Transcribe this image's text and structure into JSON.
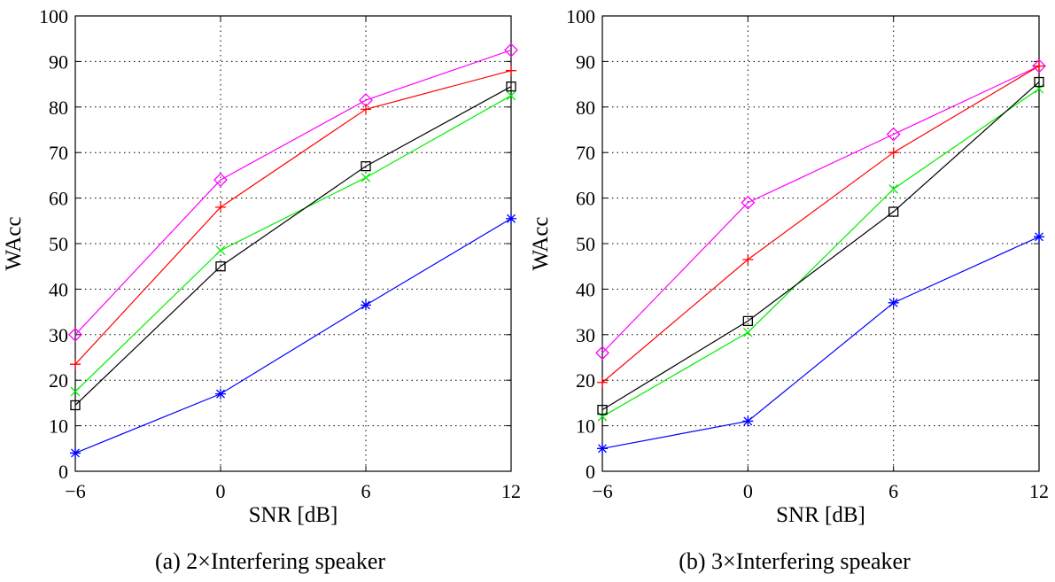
{
  "chart_data": [
    {
      "type": "line",
      "caption": "(a) 2×Interfering speaker",
      "xlabel": "SNR [dB]",
      "ylabel": "WAcc",
      "x": [
        -6,
        0,
        6,
        12
      ],
      "x_tick_labels": [
        "−6",
        "0",
        "6",
        "12"
      ],
      "xlim": [
        -6,
        12
      ],
      "ylim": [
        0,
        100
      ],
      "y_ticks": [
        0,
        10,
        20,
        30,
        40,
        50,
        60,
        70,
        80,
        90,
        100
      ],
      "grid": true,
      "series": [
        {
          "color": "#ff00ff",
          "marker": "diamond",
          "values": [
            30,
            64,
            81.5,
            92.5
          ]
        },
        {
          "color": "#ff0000",
          "marker": "plus",
          "values": [
            23.5,
            58,
            79.5,
            88
          ]
        },
        {
          "color": "#00ee00",
          "marker": "x",
          "values": [
            17.5,
            48.5,
            64.5,
            82.5
          ]
        },
        {
          "color": "#000000",
          "marker": "square",
          "values": [
            14.5,
            45,
            67,
            84.5
          ]
        },
        {
          "color": "#0000ff",
          "marker": "asterisk",
          "values": [
            4,
            17,
            36.5,
            55.5
          ]
        }
      ]
    },
    {
      "type": "line",
      "caption": "(b) 3×Interfering speaker",
      "xlabel": "SNR [dB]",
      "ylabel": "WAcc",
      "x": [
        -6,
        0,
        6,
        12
      ],
      "x_tick_labels": [
        "−6",
        "0",
        "6",
        "12"
      ],
      "xlim": [
        -6,
        12
      ],
      "ylim": [
        0,
        100
      ],
      "y_ticks": [
        0,
        10,
        20,
        30,
        40,
        50,
        60,
        70,
        80,
        90,
        100
      ],
      "grid": true,
      "series": [
        {
          "color": "#ff00ff",
          "marker": "diamond",
          "values": [
            26,
            59,
            74,
            89
          ]
        },
        {
          "color": "#ff0000",
          "marker": "plus",
          "values": [
            19.5,
            46.5,
            70,
            89
          ]
        },
        {
          "color": "#00ee00",
          "marker": "x",
          "values": [
            12,
            30.5,
            62,
            84
          ]
        },
        {
          "color": "#000000",
          "marker": "square",
          "values": [
            13.5,
            33,
            57,
            85.5
          ]
        },
        {
          "color": "#0000ff",
          "marker": "asterisk",
          "values": [
            5,
            11,
            37,
            51.5
          ]
        }
      ]
    }
  ]
}
